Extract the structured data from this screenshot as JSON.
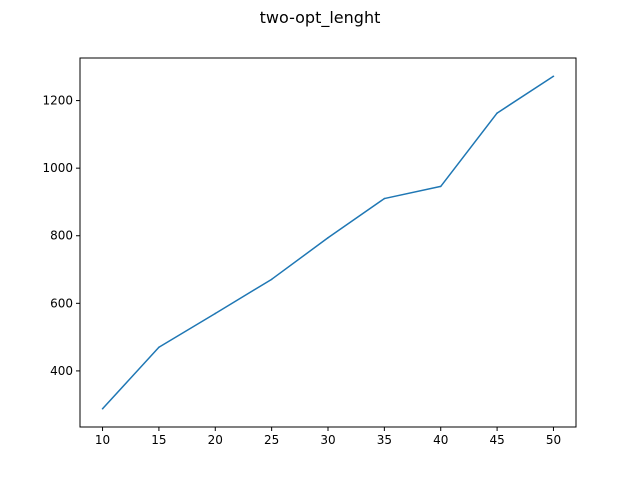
{
  "chart_data": {
    "type": "line",
    "title": "two-opt_lenght",
    "xlabel": "",
    "ylabel": "",
    "x": [
      10,
      15,
      20,
      25,
      30,
      35,
      40,
      45,
      50
    ],
    "series": [
      {
        "values": [
          288,
          470,
          570,
          671,
          794,
          910,
          946,
          1163,
          1272
        ]
      }
    ],
    "xlim": [
      8,
      52
    ],
    "ylim": [
      234,
      1326
    ],
    "xticks": [
      10,
      15,
      20,
      25,
      30,
      35,
      40,
      45,
      50
    ],
    "yticks": [
      400,
      600,
      800,
      1000,
      1200
    ],
    "grid": false,
    "colors": {
      "line": "#1f77b4",
      "axes": "#000000"
    }
  }
}
